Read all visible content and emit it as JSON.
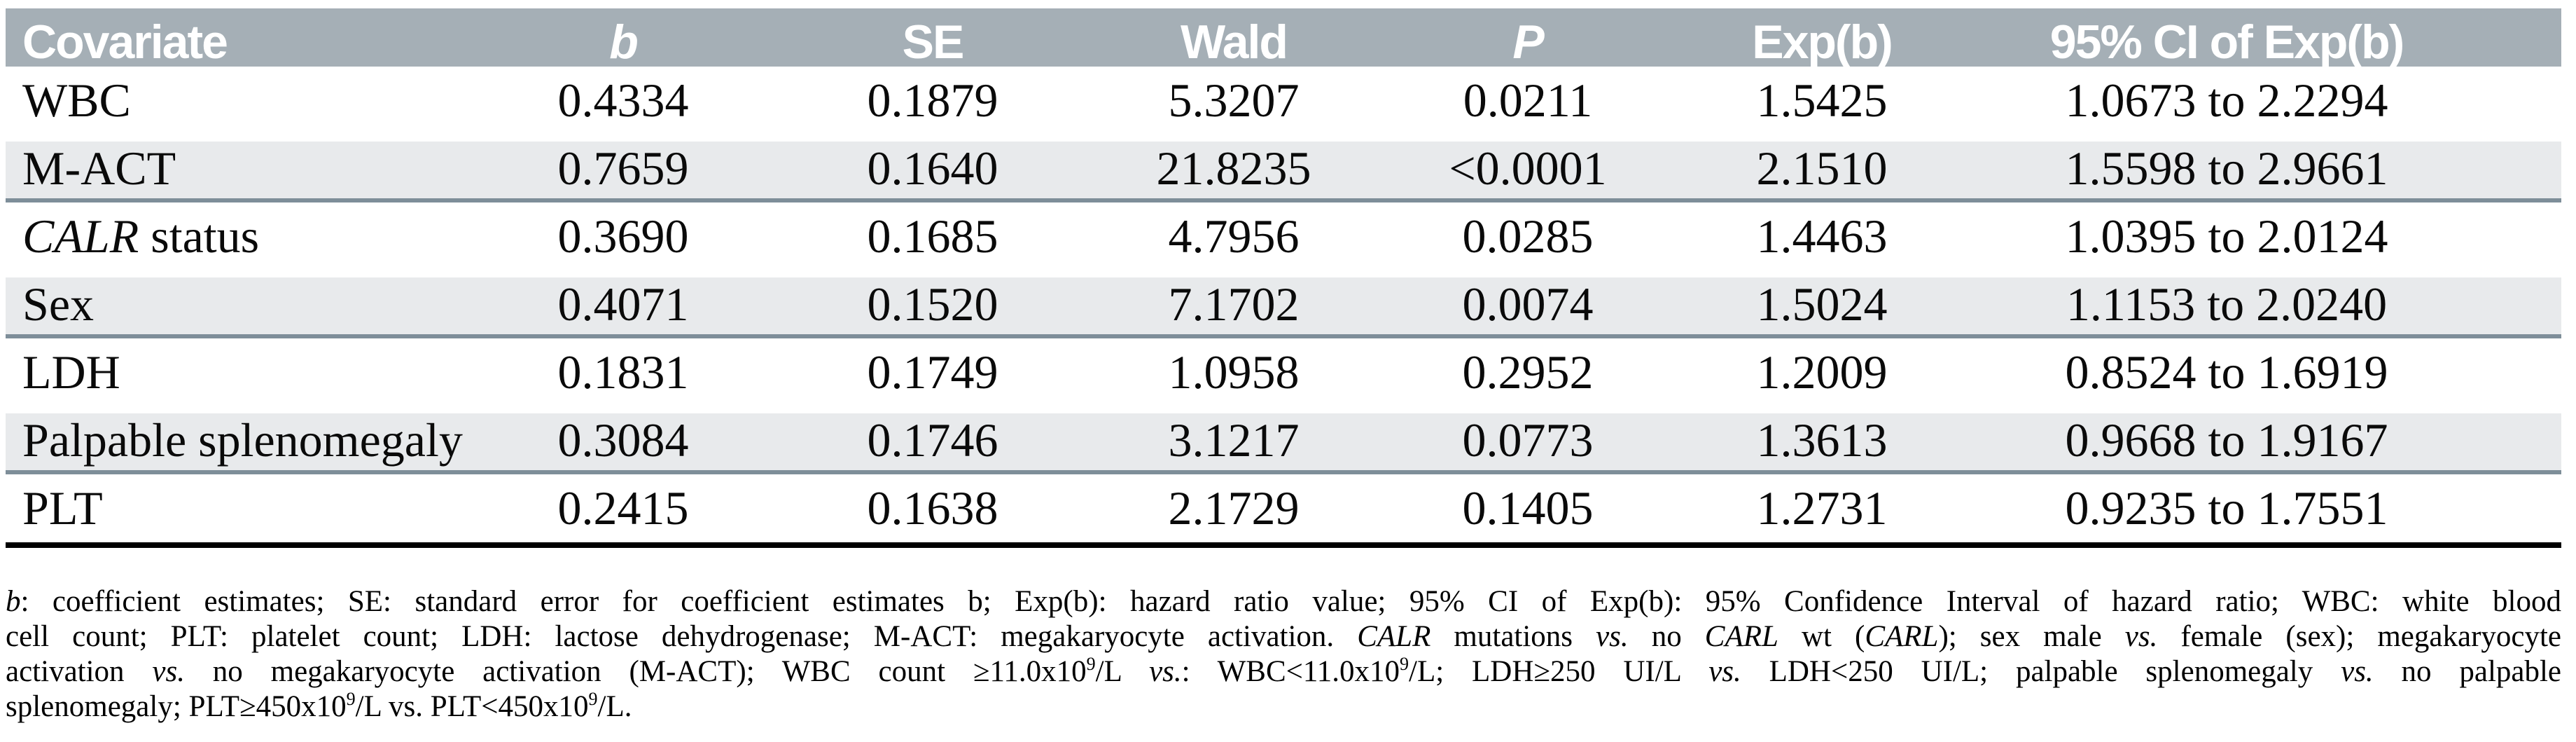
{
  "table": {
    "headers": [
      {
        "label": "Covariate",
        "italic": false
      },
      {
        "label": "b",
        "italic": true
      },
      {
        "label": "SE",
        "italic": false
      },
      {
        "label": "Wald",
        "italic": false
      },
      {
        "label": "P",
        "italic": true
      },
      {
        "label": "Exp(b)",
        "italic": false
      },
      {
        "label": "95% CI of Exp(b)",
        "italic": false
      }
    ],
    "rows": [
      {
        "covariate": [
          {
            "text": "WBC"
          }
        ],
        "shaded": false,
        "b": "0.4334",
        "se": "0.1879",
        "wald": "5.3207",
        "p": "0.0211",
        "exp_b": "1.5425",
        "ci": "1.0673 to 2.2294"
      },
      {
        "covariate": [
          {
            "text": "M-ACT"
          }
        ],
        "shaded": true,
        "b": "0.7659",
        "se": "0.1640",
        "wald": "21.8235",
        "p": "<0.0001",
        "exp_b": "2.1510",
        "ci": "1.5598 to 2.9661"
      },
      {
        "covariate": [
          {
            "text": "CALR",
            "italic": true
          },
          {
            "text": " status"
          }
        ],
        "shaded": false,
        "b": "0.3690",
        "se": "0.1685",
        "wald": "4.7956",
        "p": "0.0285",
        "exp_b": "1.4463",
        "ci": "1.0395 to 2.0124"
      },
      {
        "covariate": [
          {
            "text": "Sex"
          }
        ],
        "shaded": true,
        "b": "0.4071",
        "se": "0.1520",
        "wald": "7.1702",
        "p": "0.0074",
        "exp_b": "1.5024",
        "ci": "1.1153 to 2.0240"
      },
      {
        "covariate": [
          {
            "text": "LDH"
          }
        ],
        "shaded": false,
        "b": "0.1831",
        "se": "0.1749",
        "wald": "1.0958",
        "p": "0.2952",
        "exp_b": "1.2009",
        "ci": "0.8524 to 1.6919"
      },
      {
        "covariate": [
          {
            "text": "Palpable splenomegaly"
          }
        ],
        "shaded": true,
        "b": "0.3084",
        "se": "0.1746",
        "wald": "3.1217",
        "p": "0.0773",
        "exp_b": "1.3613",
        "ci": "0.9668 to 1.9167"
      },
      {
        "covariate": [
          {
            "text": "PLT"
          }
        ],
        "shaded": false,
        "b": "0.2415",
        "se": "0.1638",
        "wald": "2.1729",
        "p": "0.1405",
        "exp_b": "1.2731",
        "ci": "0.9235 to 1.7551"
      }
    ]
  },
  "footnote": {
    "lines": [
      [
        {
          "text": "b",
          "italic": true
        },
        {
          "text": ": coefficient estimates; SE: standard error for coefficient estimates b; Exp(b): hazard ratio value; 95% CI of Exp(b): 95% Confidence Interval of hazard ratio; WBC: white blood"
        }
      ],
      [
        {
          "text": "cell count; PLT: platelet count; LDH: lactose dehydrogenase; M-ACT: megakaryocyte activation. "
        },
        {
          "text": "CALR",
          "italic": true
        },
        {
          "text": " mutations "
        },
        {
          "text": "vs.",
          "italic": true
        },
        {
          "text": " no "
        },
        {
          "text": "CARL",
          "italic": true
        },
        {
          "text": " wt ("
        },
        {
          "text": "CARL",
          "italic": true
        },
        {
          "text": "); sex male "
        },
        {
          "text": "vs.",
          "italic": true
        },
        {
          "text": " female (sex); megakaryocyte"
        }
      ],
      [
        {
          "text": "activation "
        },
        {
          "text": "vs.",
          "italic": true
        },
        {
          "text": " no megakaryocyte activation (M-ACT); WBC count ≥11.0x10"
        },
        {
          "text": "9",
          "sup": true
        },
        {
          "text": "/L "
        },
        {
          "text": "vs.",
          "italic": true
        },
        {
          "text": ": WBC<11.0x10"
        },
        {
          "text": "9",
          "sup": true
        },
        {
          "text": "/L; LDH≥250 UI/L "
        },
        {
          "text": "vs.",
          "italic": true
        },
        {
          "text": " LDH<250 UI/L; palpable splenomegaly "
        },
        {
          "text": "vs.",
          "italic": true
        },
        {
          "text": " no palpable"
        }
      ],
      [
        {
          "text": "splenomegaly; PLT≥450x10"
        },
        {
          "text": "9",
          "sup": true
        },
        {
          "text": "/L vs. PLT<450x10"
        },
        {
          "text": "9",
          "sup": true
        },
        {
          "text": "/L."
        }
      ]
    ]
  },
  "colors": {
    "header_background": "#a5afb6",
    "header_text": "#ffffff",
    "shaded_row_background": "#e8eaec",
    "shaded_row_rule": "#7e8e99",
    "bottom_rule": "#000000",
    "body_text": "#0a0a0a"
  }
}
